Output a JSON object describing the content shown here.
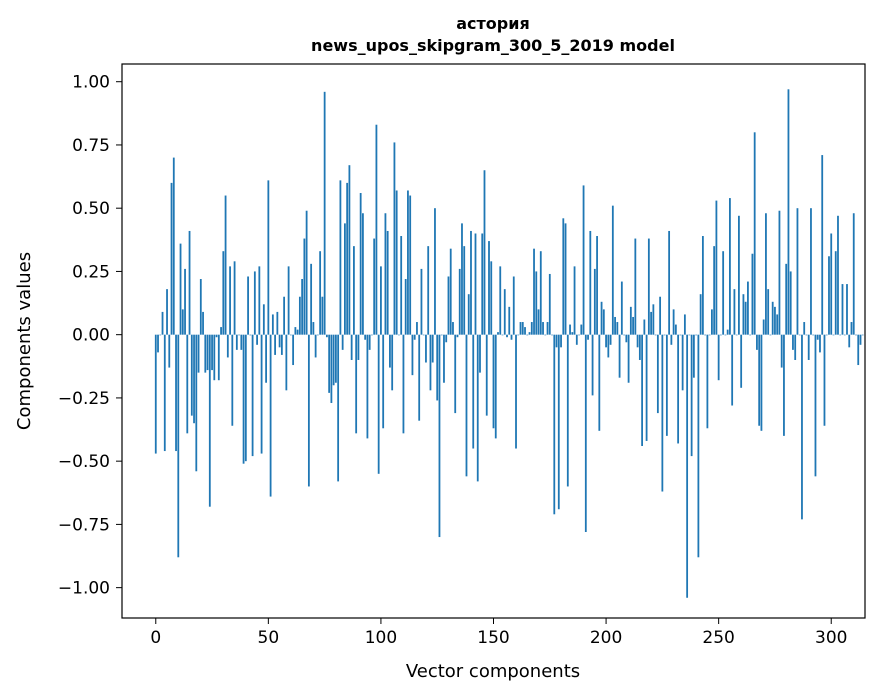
{
  "chart_data": {
    "type": "bar",
    "title_lines": [
      "астория",
      "news_upos_skipgram_300_5_2019 model"
    ],
    "xlabel": "Vector components",
    "ylabel": "Components values",
    "xlim": [
      -15,
      315
    ],
    "ylim": [
      -1.12,
      1.07
    ],
    "xticks": [
      0,
      50,
      100,
      150,
      200,
      250,
      300
    ],
    "xtick_labels": [
      "0",
      "50",
      "100",
      "150",
      "200",
      "250",
      "300"
    ],
    "yticks": [
      1.0,
      0.75,
      0.5,
      0.25,
      0.0,
      -0.25,
      -0.5,
      -0.75,
      -1.0
    ],
    "ytick_labels": [
      "1.00",
      "0.75",
      "0.50",
      "0.25",
      "0.00",
      "−0.25",
      "−0.50",
      "−0.75",
      "−1.00"
    ],
    "bar_color": "#1f77b4",
    "grid": false,
    "values": [
      -0.47,
      -0.07,
      0.0,
      0.09,
      -0.46,
      0.18,
      -0.13,
      0.6,
      0.7,
      -0.46,
      -0.88,
      0.36,
      0.1,
      0.26,
      -0.39,
      0.41,
      -0.32,
      -0.35,
      -0.54,
      -0.15,
      0.22,
      0.09,
      -0.15,
      -0.14,
      -0.68,
      -0.14,
      -0.18,
      -0.01,
      -0.18,
      0.03,
      0.33,
      0.55,
      -0.09,
      0.27,
      -0.36,
      0.29,
      -0.06,
      0.0,
      -0.06,
      -0.51,
      -0.5,
      0.23,
      0.0,
      -0.48,
      0.25,
      -0.04,
      0.27,
      -0.47,
      0.12,
      -0.19,
      0.61,
      -0.64,
      0.08,
      -0.08,
      0.09,
      -0.05,
      -0.08,
      0.15,
      -0.22,
      0.27,
      0.0,
      -0.12,
      0.03,
      0.02,
      0.15,
      0.22,
      0.38,
      0.49,
      -0.6,
      0.28,
      0.05,
      -0.09,
      0.0,
      0.33,
      0.15,
      0.96,
      -0.01,
      -0.23,
      -0.27,
      -0.2,
      -0.19,
      -0.58,
      0.61,
      -0.06,
      0.44,
      0.6,
      0.67,
      -0.1,
      0.35,
      -0.39,
      -0.1,
      0.56,
      0.48,
      -0.02,
      -0.41,
      -0.06,
      0.0,
      0.38,
      0.83,
      -0.55,
      0.27,
      -0.37,
      0.48,
      0.41,
      -0.13,
      -0.22,
      0.76,
      0.57,
      0.0,
      0.39,
      -0.39,
      0.22,
      0.57,
      0.55,
      -0.16,
      -0.02,
      0.05,
      -0.34,
      0.26,
      0.0,
      -0.11,
      0.35,
      -0.22,
      -0.11,
      0.5,
      -0.26,
      -0.8,
      0.0,
      -0.19,
      -0.03,
      0.23,
      0.34,
      0.05,
      -0.31,
      -0.01,
      0.26,
      0.44,
      0.35,
      -0.56,
      0.16,
      0.41,
      -0.45,
      0.4,
      -0.58,
      -0.15,
      0.4,
      0.65,
      -0.32,
      0.37,
      0.29,
      -0.37,
      -0.41,
      0.01,
      0.27,
      0.0,
      0.18,
      -0.01,
      0.11,
      -0.02,
      0.23,
      -0.45,
      0.0,
      0.05,
      0.05,
      0.03,
      0.0,
      0.01,
      0.05,
      0.34,
      0.25,
      0.1,
      0.33,
      0.05,
      0.0,
      0.05,
      0.24,
      0.0,
      -0.71,
      -0.05,
      -0.69,
      -0.05,
      0.46,
      0.44,
      -0.6,
      0.04,
      0.01,
      0.27,
      -0.04,
      0.0,
      0.04,
      0.59,
      -0.78,
      -0.02,
      0.41,
      -0.24,
      0.26,
      0.39,
      -0.38,
      0.13,
      0.1,
      -0.05,
      -0.09,
      -0.04,
      0.51,
      0.07,
      0.05,
      -0.17,
      0.21,
      0.0,
      -0.03,
      -0.19,
      0.11,
      0.07,
      0.38,
      -0.05,
      -0.1,
      -0.44,
      0.06,
      -0.42,
      0.38,
      0.09,
      0.12,
      0.0,
      -0.31,
      0.15,
      -0.62,
      0.0,
      -0.4,
      0.41,
      -0.04,
      0.1,
      0.04,
      -0.43,
      0.0,
      -0.22,
      0.08,
      -1.04,
      0.0,
      -0.48,
      -0.17,
      0.0,
      -0.88,
      0.16,
      0.39,
      0.0,
      -0.37,
      0.0,
      0.1,
      0.35,
      0.53,
      -0.18,
      0.0,
      0.33,
      0.0,
      0.02,
      0.54,
      -0.28,
      0.18,
      0.0,
      0.47,
      -0.21,
      0.16,
      0.13,
      0.21,
      0.0,
      0.32,
      0.8,
      -0.06,
      -0.36,
      -0.38,
      0.06,
      0.48,
      0.18,
      0.0,
      0.13,
      0.11,
      0.08,
      0.49,
      -0.13,
      -0.4,
      0.28,
      0.97,
      0.25,
      -0.06,
      -0.1,
      0.5,
      0.0,
      -0.73,
      0.05,
      0.0,
      -0.1,
      0.5,
      0.0,
      -0.56,
      -0.02,
      -0.07,
      0.71,
      -0.36,
      0.0,
      0.31,
      0.4,
      0.0,
      0.33,
      0.47,
      0.0,
      0.2,
      0.0,
      0.2,
      -0.05,
      0.05,
      0.48,
      0.0,
      -0.12,
      -0.04,
      0.0
    ]
  }
}
